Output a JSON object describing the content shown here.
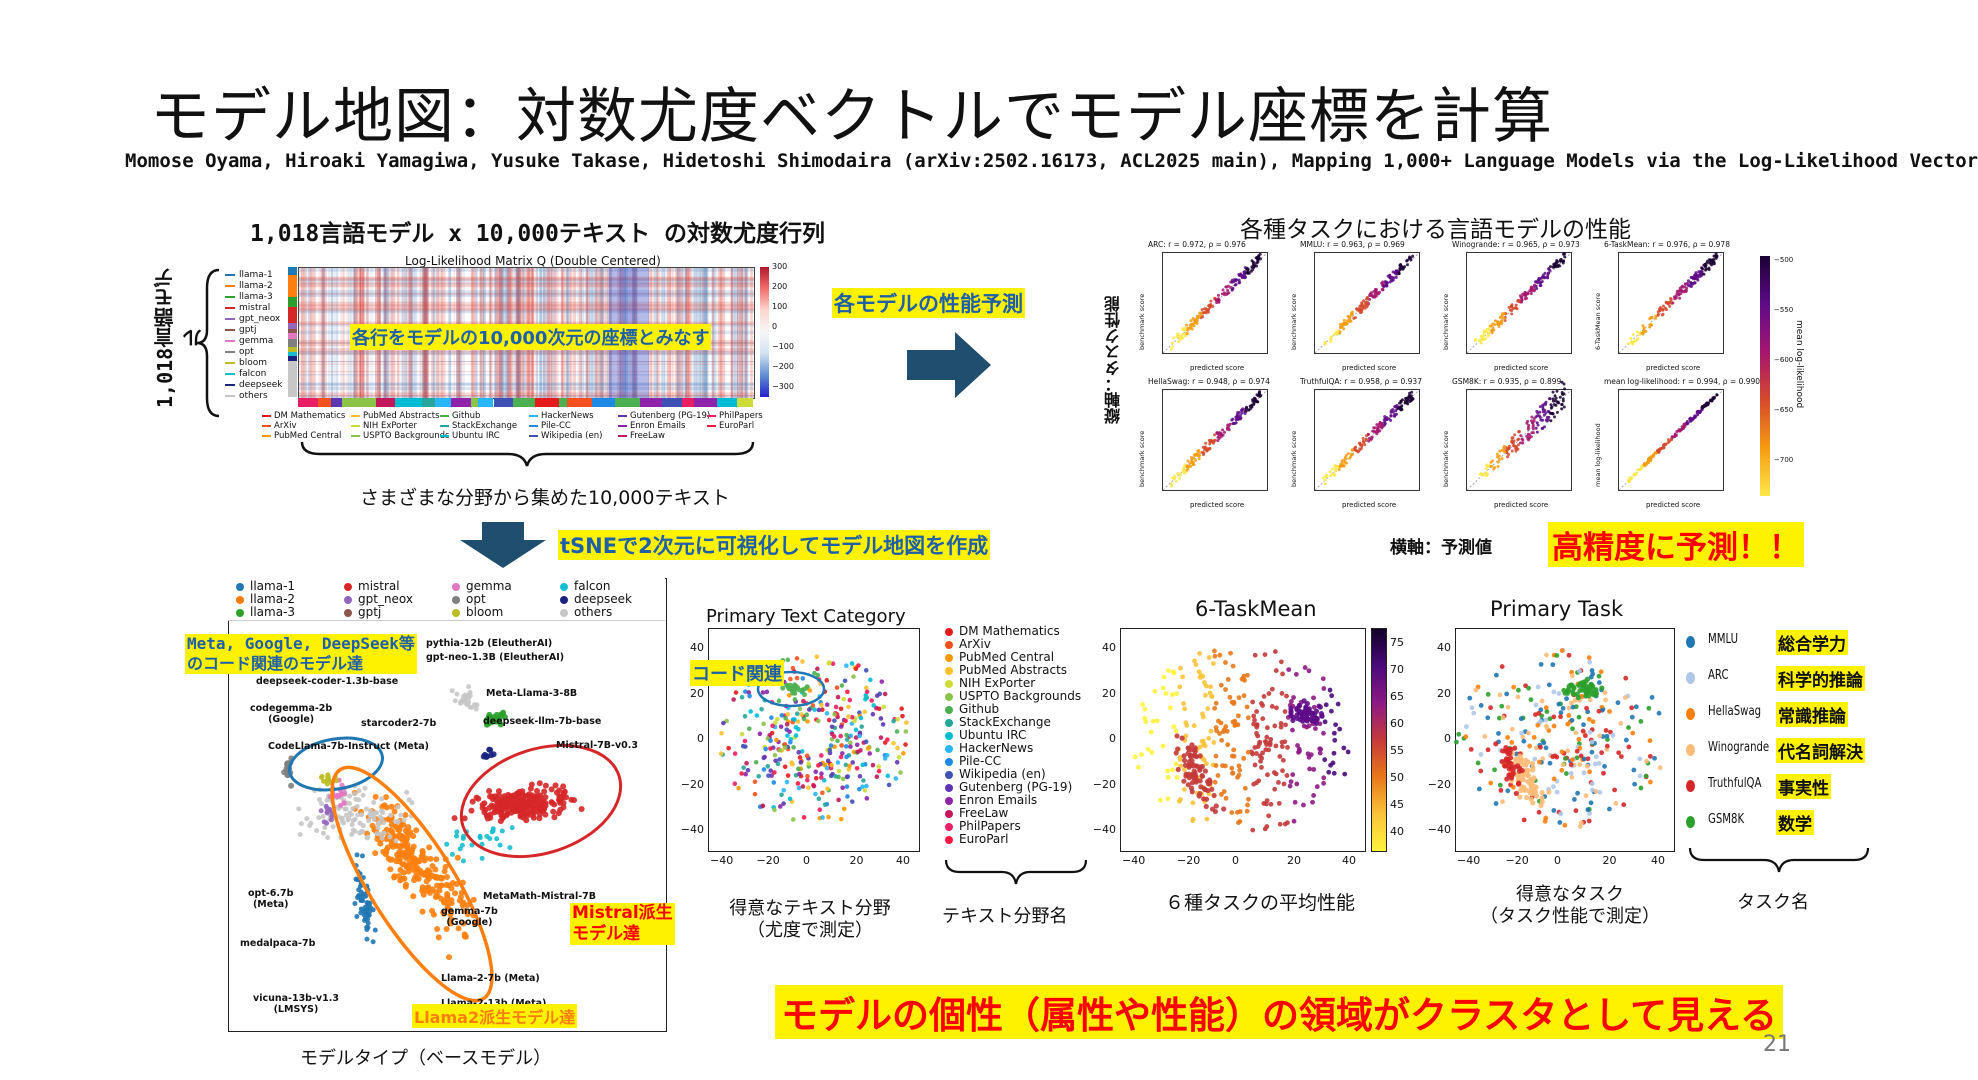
{
  "slide": {
    "title": "モデル地図：対数尤度ベクトルでモデル座標を計算",
    "citation": "Momose Oyama, Hiroaki Yamagiwa, Yusuke Takase, Hidetoshi Shimodaira (arXiv:2502.16173, ACL2025 main),  Mapping 1,000+ Language Models via the Log-Likelihood Vector",
    "page_number": "21"
  },
  "matrix": {
    "heading": "1,018言語モデル x 10,000テキスト の対数尤度行列",
    "plot_title": "Log-Likelihood Matrix Q (Double Centered)",
    "row_label": "1,018言語モデル",
    "row_annotation": "各行をモデルの10,000次元の座標とみなす",
    "col_caption": "さまざまな分野から集めた10,000テキスト",
    "colorbar_ticks": [
      "300",
      "200",
      "100",
      "0",
      "−100",
      "−200",
      "−300"
    ],
    "model_legend": [
      "llama-1",
      "llama-2",
      "llama-3",
      "mistral",
      "gpt_neox",
      "gptj",
      "gemma",
      "opt",
      "bloom",
      "falcon",
      "deepseek",
      "others"
    ],
    "text_legend": [
      [
        "DM Mathematics",
        "PubMed Abstracts",
        "Github",
        "HackerNews",
        "Gutenberg (PG-19)",
        "PhilPapers"
      ],
      [
        "ArXiv",
        "NIH ExPorter",
        "StackExchange",
        "Pile-CC",
        "Enron Emails",
        "EuroParl"
      ],
      [
        "PubMed Central",
        "USPTO Backgrounds",
        "Ubuntu IRC",
        "Wikipedia (en)",
        "FreeLaw",
        ""
      ]
    ]
  },
  "arrows": {
    "right_label": "各モデルの性能予測",
    "down_label": "tSNEで2次元に可視化してモデル地図を作成"
  },
  "perf": {
    "heading": "各種タスクにおける言語モデルの性能",
    "y_caption": "縦軸：タスク性能",
    "x_caption": "横軸：予測値",
    "highlight": "高精度に予測！！",
    "colorbar_label": "mean log-likelihood",
    "colorbar_ticks": [
      "−500",
      "−550",
      "−600",
      "−650",
      "−700"
    ],
    "panels": [
      {
        "title": "ARC: r = 0.972, ρ = 0.976",
        "xlabel": "predicted score",
        "ylabel": "benchmark score"
      },
      {
        "title": "MMLU: r = 0.963, ρ = 0.969",
        "xlabel": "predicted score",
        "ylabel": "benchmark score"
      },
      {
        "title": "Winogrande: r = 0.965, ρ = 0.973",
        "xlabel": "predicted score",
        "ylabel": "benchmark score"
      },
      {
        "title": "6-TaskMean: r = 0.976, ρ = 0.978",
        "xlabel": "predicted score",
        "ylabel": "6-TaskMean score"
      },
      {
        "title": "HellaSwag: r = 0.948, ρ = 0.974",
        "xlabel": "predicted score",
        "ylabel": "benchmark score"
      },
      {
        "title": "TruthfulQA: r = 0.958, ρ = 0.937",
        "xlabel": "predicted score",
        "ylabel": "benchmark score"
      },
      {
        "title": "GSM8K: r = 0.935, ρ = 0.899",
        "xlabel": "predicted score",
        "ylabel": "benchmark score"
      },
      {
        "title": "mean log-likelihood: r = 0.994, ρ = 0.990",
        "xlabel": "predicted score",
        "ylabel": "mean log-likelihood"
      }
    ]
  },
  "model_map": {
    "legend": [
      {
        "name": "llama-1",
        "color": "#1f77b4"
      },
      {
        "name": "mistral",
        "color": "#d62728"
      },
      {
        "name": "gemma",
        "color": "#e377c2"
      },
      {
        "name": "falcon",
        "color": "#17becf"
      },
      {
        "name": "llama-2",
        "color": "#ff7f0e"
      },
      {
        "name": "gpt_neox",
        "color": "#9467bd"
      },
      {
        "name": "opt",
        "color": "#7f7f7f"
      },
      {
        "name": "deepseek",
        "color": "#1a237e"
      },
      {
        "name": "llama-3",
        "color": "#2ca02c"
      },
      {
        "name": "gptj",
        "color": "#8c564b"
      },
      {
        "name": "bloom",
        "color": "#bcbd22"
      },
      {
        "name": "others",
        "color": "#c7c7c7"
      }
    ],
    "callout_code": "Meta, Google, DeepSeek等\nのコード関連のモデル達",
    "callout_mistral": "Mistral派生\nモデル達",
    "callout_llama2": "Llama2派生モデル達",
    "labels": [
      "pythia-12b (EleutherAI)",
      "gpt-neo-1.3B (EleutherAI)",
      "deepseek-coder-1.3b-base",
      "Meta-Llama-3-8B",
      "codegemma-2b\n(Google)",
      "starcoder2-7b",
      "deepseek-llm-7b-base",
      "CodeLlama-7b-Instruct (Meta)",
      "Mistral-7B-v0.3",
      "opt-6.7b\n(Meta)",
      "MetaMath-Mistral-7B",
      "gemma-7b\n(Google)",
      "medalpaca-7b",
      "Llama-2-7b (Meta)",
      "vicuna-13b-v1.3\n(LMSYS)",
      "Llama-2-13b (Meta)"
    ],
    "caption": "モデルタイプ（ベースモデル）"
  },
  "text_map": {
    "title": "Primary Text Category",
    "callout": "コード関連",
    "legend": [
      {
        "name": "DM Mathematics",
        "color": "#e41a1c"
      },
      {
        "name": "ArXiv",
        "color": "#f4511e"
      },
      {
        "name": "PubMed Central",
        "color": "#ff9800"
      },
      {
        "name": "PubMed Abstracts",
        "color": "#fbc02d"
      },
      {
        "name": "NIH ExPorter",
        "color": "#cddc39"
      },
      {
        "name": "USPTO Backgrounds",
        "color": "#8bc34a"
      },
      {
        "name": "Github",
        "color": "#4caf50"
      },
      {
        "name": "StackExchange",
        "color": "#26a69a"
      },
      {
        "name": "Ubuntu IRC",
        "color": "#00bcd4"
      },
      {
        "name": "HackerNews",
        "color": "#29b6f6"
      },
      {
        "name": "Pile-CC",
        "color": "#1e88e5"
      },
      {
        "name": "Wikipedia (en)",
        "color": "#3f51b5"
      },
      {
        "name": "Gutenberg (PG-19)",
        "color": "#5e35b1"
      },
      {
        "name": "Enron Emails",
        "color": "#8e24aa"
      },
      {
        "name": "FreeLaw",
        "color": "#c2185b"
      },
      {
        "name": "PhilPapers",
        "color": "#e91e63"
      },
      {
        "name": "EuroParl",
        "color": "#ff1744"
      }
    ],
    "caption1": "得意なテキスト分野\n（尤度で測定）",
    "caption2": "テキスト分野名"
  },
  "task_mean_map": {
    "title": "6-TaskMean",
    "colorbar_ticks": [
      "75",
      "70",
      "65",
      "60",
      "55",
      "50",
      "45",
      "40"
    ],
    "caption": "６種タスクの平均性能"
  },
  "primary_task_map": {
    "title": "Primary Task",
    "legend": [
      {
        "name": "MMLU",
        "jp": "総合学力",
        "color": "#1f77b4"
      },
      {
        "name": "ARC",
        "jp": "科学的推論",
        "color": "#aec7e8"
      },
      {
        "name": "HellaSwag",
        "jp": "常識推論",
        "color": "#ff7f0e"
      },
      {
        "name": "Winogrande",
        "jp": "代名詞解決",
        "color": "#ffbb78"
      },
      {
        "name": "TruthfulQA",
        "jp": "事実性",
        "color": "#d62728"
      },
      {
        "name": "GSM8K",
        "jp": "数学",
        "color": "#2ca02c"
      }
    ],
    "caption1": "得意なタスク\n（タスク性能で測定）",
    "caption2": "タスク名"
  },
  "axes": {
    "map_x_ticks": [
      "−40",
      "−20",
      "0",
      "20",
      "40"
    ],
    "map_y_ticks": [
      "40",
      "20",
      "0",
      "−20",
      "−40"
    ]
  },
  "conclusion": "モデルの個性（属性や性能）の領域がクラスタとして見える"
}
